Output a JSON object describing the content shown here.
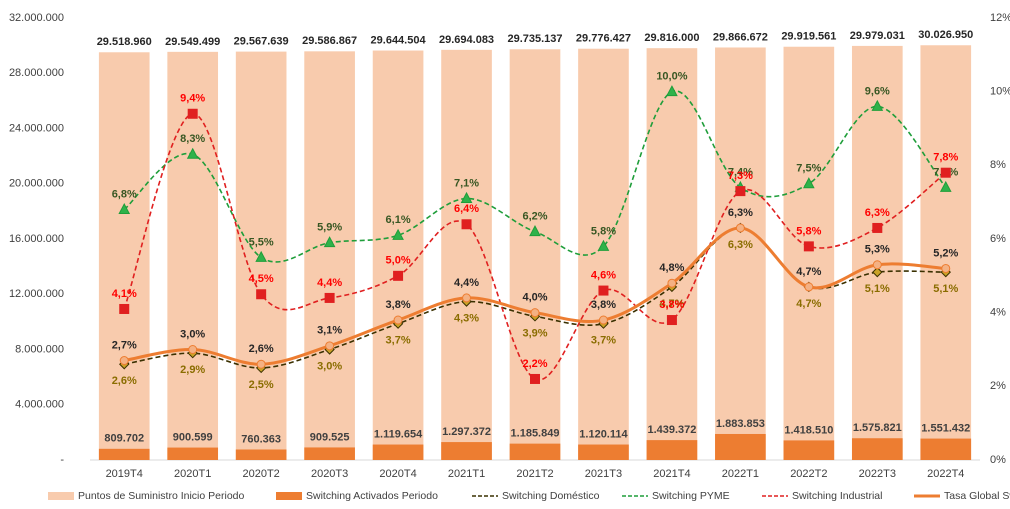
{
  "chart_data": {
    "type": "combo",
    "categories": [
      "2019T4",
      "2020T1",
      "2020T2",
      "2020T3",
      "2020T4",
      "2021T1",
      "2021T2",
      "2021T3",
      "2021T4",
      "2022T1",
      "2022T2",
      "2022T3",
      "2022T4"
    ],
    "ylim": [
      0,
      32000000
    ],
    "yticks": [
      {
        "value": 0,
        "label": "-"
      },
      {
        "value": 4000000,
        "label": "4.000.000"
      },
      {
        "value": 8000000,
        "label": "8.000.000"
      },
      {
        "value": 12000000,
        "label": "12.000.000"
      },
      {
        "value": 16000000,
        "label": "16.000.000"
      },
      {
        "value": 20000000,
        "label": "20.000.000"
      },
      {
        "value": 24000000,
        "label": "24.000.000"
      },
      {
        "value": 28000000,
        "label": "28.000.000"
      },
      {
        "value": 32000000,
        "label": "32.000.000"
      }
    ],
    "y2lim": [
      0,
      12
    ],
    "y2ticks": [
      {
        "value": 0,
        "label": "0%"
      },
      {
        "value": 2,
        "label": "2%"
      },
      {
        "value": 4,
        "label": "4%"
      },
      {
        "value": 6,
        "label": "6%"
      },
      {
        "value": 8,
        "label": "8%"
      },
      {
        "value": 10,
        "label": "10%"
      },
      {
        "value": 12,
        "label": "12%"
      }
    ],
    "legend": "bottom",
    "series": [
      {
        "name": "Puntos de Suministro Inicio Periodo",
        "type": "bar",
        "color": "#f8cbad",
        "label_color": "#262626",
        "values": [
          29518960,
          29549499,
          29567639,
          29586867,
          29644504,
          29694083,
          29735137,
          29776427,
          29816000,
          29866672,
          29919561,
          29979031,
          30026950
        ],
        "value_labels": [
          "29.518.960",
          "29.549.499",
          "29.567.639",
          "29.586.867",
          "29.644.504",
          "29.694.083",
          "29.735.137",
          "29.776.427",
          "29.816.000",
          "29.866.672",
          "29.919.561",
          "29.979.031",
          "30.026.950"
        ]
      },
      {
        "name": "Switching Activados Periodo",
        "type": "bar",
        "color": "#ed7d31",
        "label_color": "#404040",
        "values": [
          809702,
          900599,
          760363,
          909525,
          1119654,
          1297372,
          1185849,
          1120114,
          1439372,
          1883853,
          1418510,
          1575821,
          1551432
        ],
        "value_labels": [
          "809.702",
          "900.599",
          "760.363",
          "909.525",
          "1.119.654",
          "1.297.372",
          "1.185.849",
          "1.120.114",
          "1.439.372",
          "1.883.853",
          "1.418.510",
          "1.575.821",
          "1.551.432"
        ]
      },
      {
        "name": "Switching Doméstico",
        "type": "line",
        "axis": "y2",
        "color": "#3a3000",
        "fill": "#c9a227",
        "label_color": "#8a6d00",
        "dashed": true,
        "marker": "diamond",
        "values": [
          2.6,
          2.9,
          2.5,
          3.0,
          3.7,
          4.3,
          3.9,
          3.7,
          4.7,
          6.3,
          4.7,
          5.1,
          5.1
        ],
        "value_labels": [
          "2,6%",
          "2,9%",
          "2,5%",
          "3,0%",
          "3,7%",
          "4,3%",
          "3,9%",
          "3,7%",
          "4,7%",
          "6,3%",
          "4,7%",
          "5,1%",
          "5,1%"
        ]
      },
      {
        "name": "Switching PYME",
        "type": "line",
        "axis": "y2",
        "color": "#1f9e3a",
        "fill": "#2fb24a",
        "label_color": "#385723",
        "dashed": true,
        "marker": "triangle",
        "values": [
          6.8,
          8.3,
          5.5,
          5.9,
          6.1,
          7.1,
          6.2,
          5.8,
          10.0,
          7.4,
          7.5,
          9.6,
          7.4
        ],
        "value_labels": [
          "6,8%",
          "8,3%",
          "5,5%",
          "5,9%",
          "6,1%",
          "7,1%",
          "6,2%",
          "5,8%",
          "10,0%",
          "7,4%",
          "7,5%",
          "9,6%",
          "7,4%"
        ]
      },
      {
        "name": "Switching Industrial",
        "type": "line",
        "axis": "y2",
        "color": "#e02020",
        "fill": "#e02020",
        "label_color": "#ff0000",
        "dashed": true,
        "marker": "square",
        "values": [
          4.1,
          9.4,
          4.5,
          4.4,
          5.0,
          6.4,
          2.2,
          4.6,
          3.8,
          7.3,
          5.8,
          6.3,
          7.8
        ],
        "value_labels": [
          "4,1%",
          "9,4%",
          "4,5%",
          "4,4%",
          "5,0%",
          "6,4%",
          "2,2%",
          "4,6%",
          "3,8%",
          "7,3%",
          "5,8%",
          "6,3%",
          "7,8%"
        ]
      },
      {
        "name": "Tasa Global Switching",
        "type": "line",
        "axis": "y2",
        "color": "#ed7d31",
        "fill": "#f4b183",
        "label_color": "#262626",
        "dashed": false,
        "marker": "circle",
        "values": [
          2.7,
          3.0,
          2.6,
          3.1,
          3.8,
          4.4,
          4.0,
          3.8,
          4.8,
          6.3,
          4.7,
          5.3,
          5.2
        ],
        "value_labels": [
          "2,7%",
          "3,0%",
          "2,6%",
          "3,1%",
          "3,8%",
          "4,4%",
          "4,0%",
          "3,8%",
          "4,8%",
          "6,3%",
          "4,7%",
          "5,3%",
          "5,2%"
        ]
      }
    ]
  }
}
